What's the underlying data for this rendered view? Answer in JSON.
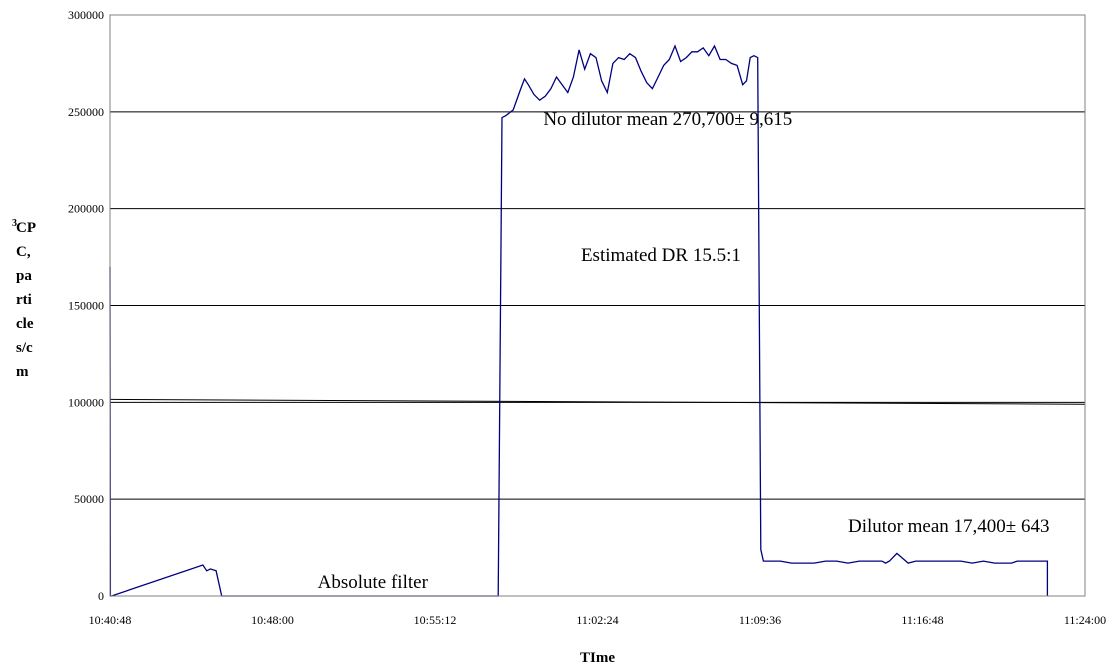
{
  "chart_data": {
    "type": "line",
    "title": "",
    "xlabel": "TIme",
    "ylabel_lines": [
      "CP",
      "C,",
      "pa",
      "rti",
      "cle",
      "s/c",
      "m"
    ],
    "ylabel_superscript": "3",
    "ylim": [
      0,
      300000
    ],
    "y_ticks": [
      "0",
      "50000",
      "100000",
      "150000",
      "200000",
      "250000",
      "300000"
    ],
    "x_ticks": [
      "10:40:48",
      "10:48:00",
      "10:55:12",
      "11:02:24",
      "11:09:36",
      "11:16:48",
      "11:24:00"
    ],
    "xlim_seconds_from_start": [
      0,
      2592
    ],
    "grid": "horizontal",
    "legend": "none",
    "line_color": "#000080",
    "annotations": [
      {
        "text": "No dilutor mean 270,700± 9,615",
        "x": "11:00:00",
        "y": 240000
      },
      {
        "text": "Estimated DR 15.5:1",
        "x": "11:01:40",
        "y": 170000
      },
      {
        "text": "Dilutor mean 17,400± 643",
        "x": "11:13:30",
        "y": 30000
      },
      {
        "text": "Absolute filter",
        "x": "10:50:00",
        "y": 1000
      }
    ],
    "trendline": {
      "x": [
        "10:40:48",
        "11:24:00"
      ],
      "y": [
        101500,
        99000
      ],
      "color": "#000000"
    },
    "series": [
      {
        "x": [
          "10:40:48",
          "10:40:49",
          "10:40:52",
          "10:44:55",
          "10:45:05",
          "10:45:15",
          "10:45:30",
          "10:45:45",
          "10:47:00",
          "10:58:00",
          "10:58:10",
          "10:58:20",
          "10:58:40",
          "10:59:00",
          "10:59:10",
          "10:59:20",
          "10:59:35",
          "10:59:50",
          "11:00:05",
          "11:00:20",
          "11:00:35",
          "11:00:50",
          "11:01:05",
          "11:01:20",
          "11:01:35",
          "11:01:50",
          "11:02:05",
          "11:02:20",
          "11:02:35",
          "11:02:50",
          "11:03:05",
          "11:03:20",
          "11:03:35",
          "11:03:50",
          "11:04:05",
          "11:04:20",
          "11:04:35",
          "11:04:50",
          "11:05:05",
          "11:05:20",
          "11:05:35",
          "11:05:50",
          "11:06:05",
          "11:06:20",
          "11:06:35",
          "11:06:50",
          "11:07:05",
          "11:07:20",
          "11:07:35",
          "11:07:50",
          "11:08:05",
          "11:08:20",
          "11:08:35",
          "11:08:50",
          "11:09:00",
          "11:09:10",
          "11:09:20",
          "11:09:30",
          "11:09:38",
          "11:09:45",
          "11:10:00",
          "11:10:30",
          "11:11:00",
          "11:11:30",
          "11:12:00",
          "11:12:30",
          "11:12:40",
          "11:13:00",
          "11:13:30",
          "11:14:00",
          "11:14:30",
          "11:14:45",
          "11:15:00",
          "11:15:10",
          "11:15:20",
          "11:15:40",
          "11:16:10",
          "11:16:30",
          "11:16:40",
          "11:17:00",
          "11:17:30",
          "11:18:00",
          "11:18:30",
          "11:19:00",
          "11:19:30",
          "11:20:00",
          "11:20:30",
          "11:20:45",
          "11:21:00",
          "11:21:30",
          "11:22:00",
          "11:22:20",
          "11:22:20"
        ],
        "y": [
          170000,
          0,
          0,
          16000,
          13000,
          14000,
          13000,
          0,
          0,
          0,
          247000,
          248000,
          251000,
          262000,
          267000,
          264000,
          259000,
          256000,
          258000,
          262000,
          268000,
          264000,
          260000,
          268000,
          282000,
          272000,
          280000,
          278000,
          266000,
          260000,
          275000,
          278000,
          277000,
          280000,
          278000,
          271000,
          265000,
          262000,
          268000,
          274000,
          277000,
          284000,
          276000,
          278000,
          281000,
          281000,
          283000,
          279000,
          284000,
          277000,
          277000,
          275000,
          274000,
          264000,
          266000,
          278000,
          279000,
          278000,
          24000,
          18000,
          18000,
          18000,
          17000,
          17000,
          17000,
          18000,
          18000,
          18000,
          17000,
          18000,
          18000,
          18000,
          18000,
          17000,
          18000,
          22000,
          17000,
          18000,
          18000,
          18000,
          18000,
          18000,
          18000,
          17000,
          18000,
          17000,
          17000,
          17000,
          18000,
          18000,
          18000,
          18000,
          0
        ]
      }
    ]
  }
}
